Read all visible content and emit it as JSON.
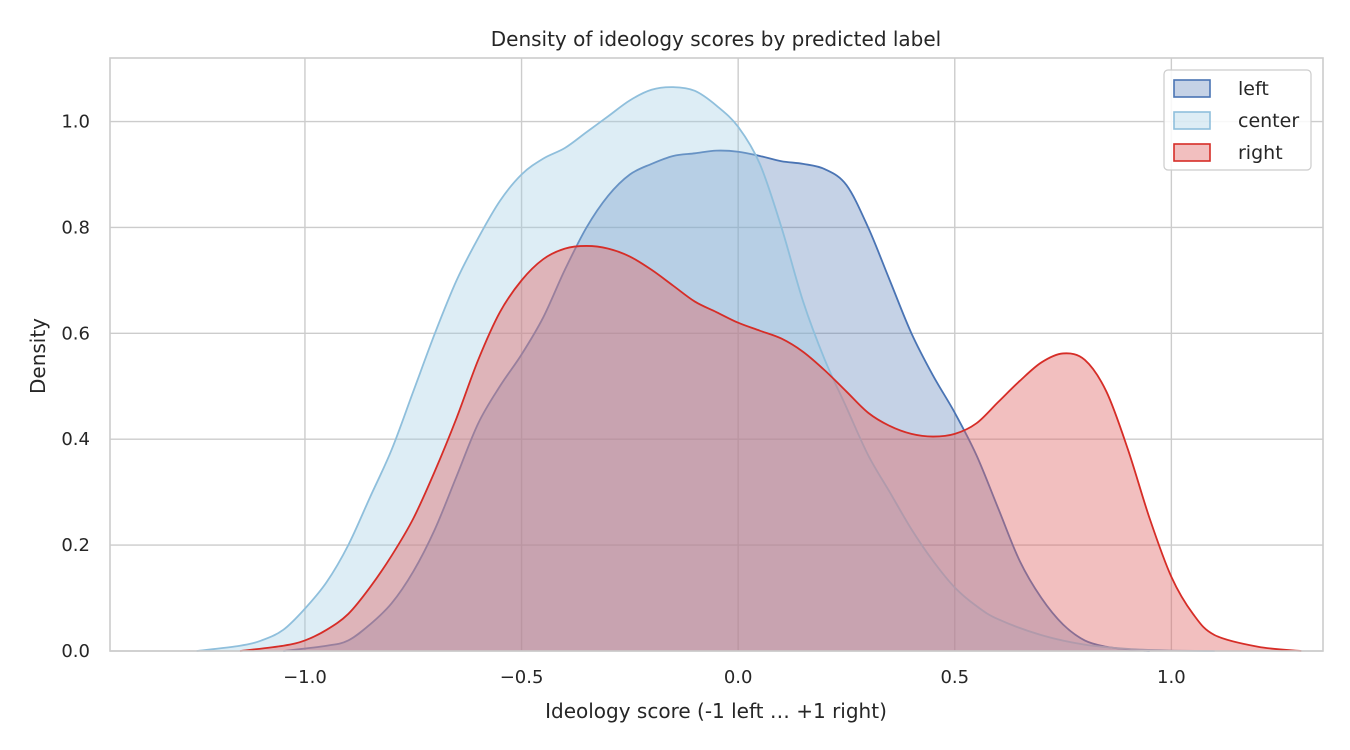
{
  "chart_data": {
    "type": "area",
    "title": "Density of ideology scores by predicted label",
    "xlabel": "Ideology score (-1 left … +1 right)",
    "ylabel": "Density",
    "xlim": [
      -1.45,
      1.35
    ],
    "ylim": [
      0.0,
      1.12
    ],
    "xticks": [
      -1.0,
      -0.5,
      0.0,
      0.5,
      1.0
    ],
    "xtick_labels": [
      "−1.0",
      "−0.5",
      "0.0",
      "0.5",
      "1.0"
    ],
    "yticks": [
      0.0,
      0.2,
      0.4,
      0.6,
      0.8,
      1.0
    ],
    "ytick_labels": [
      "0.0",
      "0.2",
      "0.4",
      "0.6",
      "0.8",
      "1.0"
    ],
    "grid": true,
    "legend_position": "top-right",
    "series": [
      {
        "name": "left",
        "color": "#4c72b0",
        "line_color": "#4a74b4",
        "fill_opacity": 0.32,
        "x": [
          -1.05,
          -0.95,
          -0.9,
          -0.85,
          -0.8,
          -0.75,
          -0.7,
          -0.65,
          -0.6,
          -0.55,
          -0.5,
          -0.45,
          -0.4,
          -0.35,
          -0.3,
          -0.25,
          -0.2,
          -0.15,
          -0.1,
          -0.05,
          0.0,
          0.05,
          0.1,
          0.15,
          0.2,
          0.25,
          0.3,
          0.35,
          0.4,
          0.45,
          0.5,
          0.55,
          0.6,
          0.65,
          0.7,
          0.75,
          0.8,
          0.85,
          0.9,
          0.95
        ],
        "y": [
          0.0,
          0.01,
          0.02,
          0.05,
          0.09,
          0.15,
          0.23,
          0.33,
          0.43,
          0.5,
          0.56,
          0.63,
          0.72,
          0.8,
          0.86,
          0.9,
          0.92,
          0.935,
          0.94,
          0.945,
          0.943,
          0.935,
          0.925,
          0.92,
          0.91,
          0.88,
          0.8,
          0.7,
          0.6,
          0.52,
          0.45,
          0.37,
          0.27,
          0.17,
          0.1,
          0.05,
          0.02,
          0.008,
          0.003,
          0.0
        ]
      },
      {
        "name": "center",
        "color": "#9ecae1",
        "line_color": "#8fbfdc",
        "fill_opacity": 0.35,
        "x": [
          -1.25,
          -1.15,
          -1.1,
          -1.05,
          -1.0,
          -0.95,
          -0.9,
          -0.85,
          -0.8,
          -0.75,
          -0.7,
          -0.65,
          -0.6,
          -0.55,
          -0.5,
          -0.45,
          -0.4,
          -0.35,
          -0.3,
          -0.25,
          -0.2,
          -0.15,
          -0.1,
          -0.05,
          0.0,
          0.05,
          0.1,
          0.15,
          0.2,
          0.25,
          0.3,
          0.35,
          0.4,
          0.45,
          0.5,
          0.55,
          0.6,
          0.7,
          0.8,
          0.9,
          1.0,
          1.1
        ],
        "y": [
          0.0,
          0.01,
          0.02,
          0.04,
          0.08,
          0.13,
          0.2,
          0.29,
          0.38,
          0.49,
          0.6,
          0.7,
          0.78,
          0.85,
          0.9,
          0.93,
          0.95,
          0.98,
          1.01,
          1.04,
          1.06,
          1.065,
          1.058,
          1.03,
          0.99,
          0.92,
          0.8,
          0.66,
          0.55,
          0.46,
          0.37,
          0.3,
          0.23,
          0.17,
          0.12,
          0.085,
          0.06,
          0.03,
          0.012,
          0.004,
          0.001,
          0.0
        ]
      },
      {
        "name": "right",
        "color": "#e06666",
        "line_color": "#d62d27",
        "fill_opacity": 0.42,
        "x": [
          -1.15,
          -1.05,
          -1.0,
          -0.95,
          -0.9,
          -0.85,
          -0.8,
          -0.75,
          -0.7,
          -0.65,
          -0.6,
          -0.55,
          -0.5,
          -0.45,
          -0.4,
          -0.35,
          -0.3,
          -0.25,
          -0.2,
          -0.15,
          -0.1,
          -0.05,
          0.0,
          0.05,
          0.1,
          0.15,
          0.2,
          0.25,
          0.3,
          0.35,
          0.4,
          0.45,
          0.5,
          0.55,
          0.6,
          0.65,
          0.7,
          0.75,
          0.8,
          0.85,
          0.9,
          0.95,
          1.0,
          1.05,
          1.1,
          1.2,
          1.3
        ],
        "y": [
          0.0,
          0.01,
          0.02,
          0.04,
          0.07,
          0.12,
          0.18,
          0.25,
          0.34,
          0.44,
          0.55,
          0.64,
          0.7,
          0.74,
          0.76,
          0.765,
          0.76,
          0.745,
          0.72,
          0.69,
          0.66,
          0.64,
          0.62,
          0.605,
          0.59,
          0.565,
          0.53,
          0.49,
          0.45,
          0.425,
          0.41,
          0.405,
          0.41,
          0.43,
          0.47,
          0.51,
          0.545,
          0.562,
          0.55,
          0.49,
          0.38,
          0.25,
          0.14,
          0.07,
          0.03,
          0.008,
          0.0
        ]
      }
    ]
  }
}
